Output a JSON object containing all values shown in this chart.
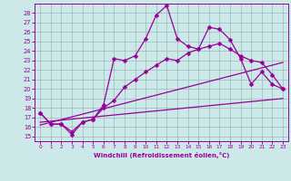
{
  "xlabel": "Windchill (Refroidissement éolien,°C)",
  "bg_color": "#cce8e8",
  "line_color": "#990099",
  "grid_color": "#99bbbb",
  "xlim": [
    -0.5,
    23.5
  ],
  "ylim": [
    14.5,
    29.0
  ],
  "yticks": [
    15,
    16,
    17,
    18,
    19,
    20,
    21,
    22,
    23,
    24,
    25,
    26,
    27,
    28
  ],
  "xticks": [
    0,
    1,
    2,
    3,
    4,
    5,
    6,
    7,
    8,
    9,
    10,
    11,
    12,
    13,
    14,
    15,
    16,
    17,
    18,
    19,
    20,
    21,
    22,
    23
  ],
  "line1_x": [
    0,
    1,
    2,
    3,
    4,
    5,
    6,
    7,
    8,
    9,
    10,
    11,
    12,
    13,
    14,
    15,
    16,
    17,
    18,
    19,
    20,
    21,
    22,
    23
  ],
  "line1_y": [
    17.5,
    16.3,
    16.3,
    15.2,
    16.5,
    16.8,
    18.3,
    23.2,
    23.0,
    23.5,
    25.3,
    27.8,
    28.8,
    25.3,
    24.5,
    24.2,
    26.5,
    26.3,
    25.2,
    23.2,
    20.5,
    21.8,
    20.5,
    20.0
  ],
  "line2_x": [
    0,
    1,
    2,
    3,
    4,
    5,
    6,
    7,
    8,
    9,
    10,
    11,
    12,
    13,
    14,
    15,
    16,
    17,
    18,
    19,
    20,
    21,
    22,
    23
  ],
  "line2_y": [
    17.5,
    16.3,
    16.3,
    15.5,
    16.5,
    16.8,
    18.0,
    18.8,
    20.2,
    21.0,
    21.8,
    22.5,
    23.2,
    23.0,
    23.8,
    24.2,
    24.5,
    24.8,
    24.2,
    23.5,
    23.0,
    22.8,
    21.5,
    20.0
  ],
  "line3_x": [
    0,
    23
  ],
  "line3_y": [
    16.5,
    19.0
  ],
  "line4_x": [
    0,
    23
  ],
  "line4_y": [
    16.2,
    22.8
  ]
}
